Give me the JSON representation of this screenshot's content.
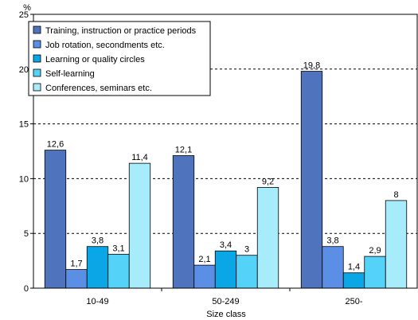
{
  "chart_data": {
    "type": "bar",
    "ylabel": "%",
    "xlabel": "Size class",
    "ylim": [
      0,
      25
    ],
    "yticks": [
      0,
      5,
      10,
      15,
      20,
      25
    ],
    "grid": "horizontal dashed",
    "legend_position": "top-left",
    "categories": [
      "10-49",
      "50-249",
      "250-"
    ],
    "series": [
      {
        "name": "Training, instruction or practice periods",
        "color": "#4f74bd",
        "values": [
          12.6,
          12.1,
          19.8
        ],
        "labels": [
          "12,6",
          "12,1",
          "19,8"
        ]
      },
      {
        "name": "Job rotation, secondments etc.",
        "color": "#5b8fe6",
        "values": [
          1.7,
          2.1,
          3.8
        ],
        "labels": [
          "1,7",
          "2,1",
          "3,8"
        ]
      },
      {
        "name": "Learning or quality circles",
        "color": "#0aa6e6",
        "values": [
          3.8,
          3.4,
          1.4
        ],
        "labels": [
          "3,8",
          "3,4",
          "1,4"
        ]
      },
      {
        "name": "Self-learning",
        "color": "#54d2f7",
        "values": [
          3.1,
          3.0,
          2.9
        ],
        "labels": [
          "3,1",
          "3",
          "2,9"
        ]
      },
      {
        "name": "Conferences, seminars etc.",
        "color": "#a6ecfb",
        "values": [
          11.4,
          9.2,
          8.0
        ],
        "labels": [
          "11,4",
          "9,2",
          "8"
        ]
      }
    ]
  }
}
